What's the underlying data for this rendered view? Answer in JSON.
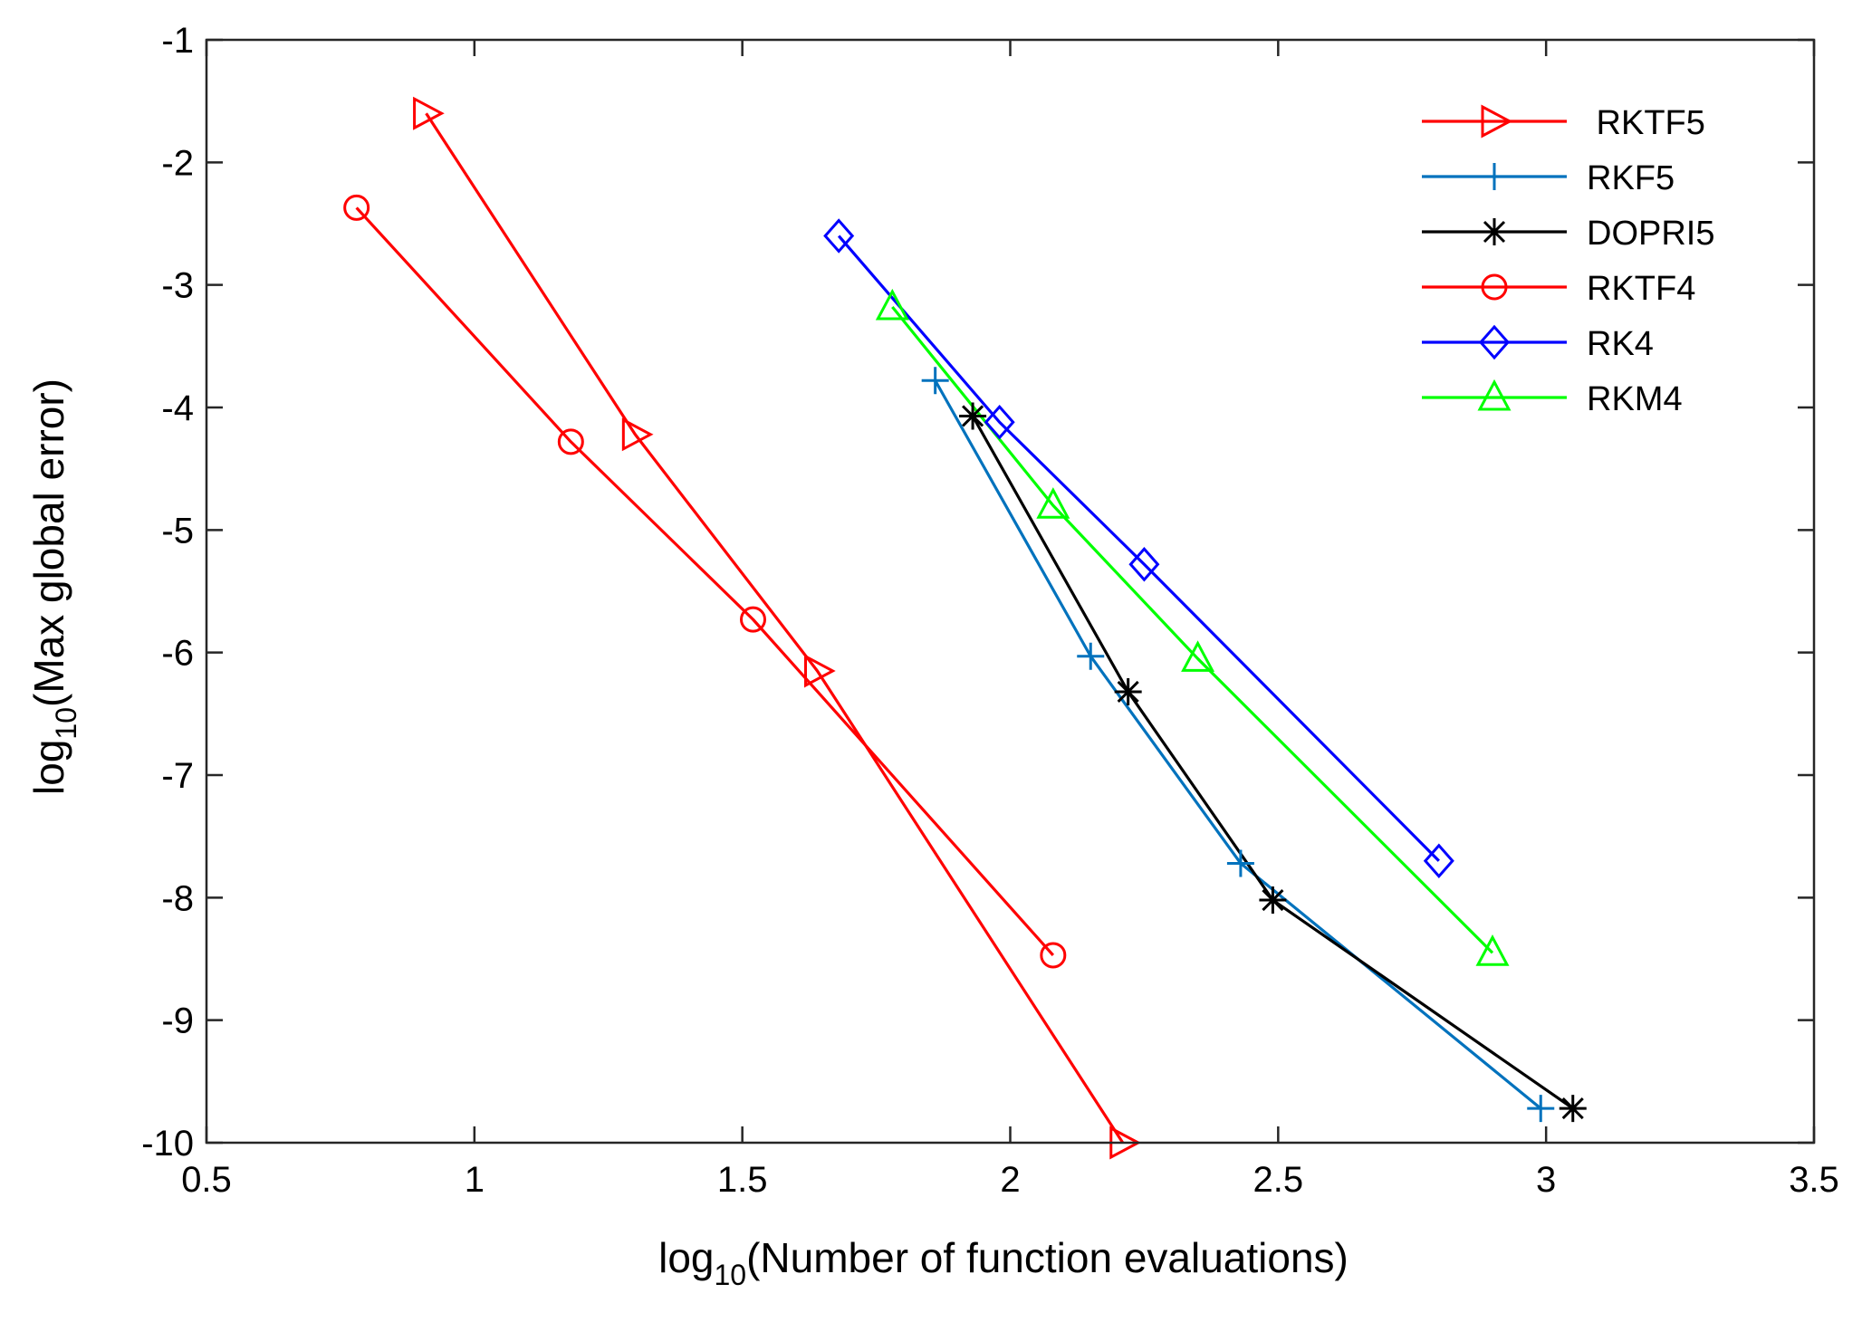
{
  "chart_data": {
    "type": "line",
    "title": "",
    "xlabel": {
      "prefix": "log",
      "sub": "10",
      "rest": "(Number of function evaluations)"
    },
    "ylabel": {
      "prefix": "log",
      "sub": "10",
      "rest": "(Max global error)"
    },
    "xlim": [
      0.5,
      3.5
    ],
    "ylim": [
      -10,
      -1
    ],
    "xticks": [
      0.5,
      1,
      1.5,
      2,
      2.5,
      3,
      3.5
    ],
    "xtick_labels": [
      "0.5",
      "1",
      "1.5",
      "2",
      "2.5",
      "3",
      "3.5"
    ],
    "yticks": [
      -1,
      -2,
      -3,
      -4,
      -5,
      -6,
      -7,
      -8,
      -9,
      -10
    ],
    "ytick_labels": [
      "-1",
      "-2",
      "-3",
      "-4",
      "-5",
      "-6",
      "-7",
      "-8",
      "-9",
      "-10"
    ],
    "grid": false,
    "legend_position": "top-right",
    "series": [
      {
        "name": " RKTF5",
        "color": "#ff0000",
        "marker": "triangle-right",
        "x": [
          0.91,
          1.3,
          1.64,
          2.21
        ],
        "y": [
          -1.6,
          -4.22,
          -6.15,
          -10.0
        ]
      },
      {
        "name": "RKF5",
        "color": "#0072bd",
        "marker": "plus",
        "x": [
          1.86,
          2.15,
          2.43,
          2.99
        ],
        "y": [
          -3.78,
          -6.03,
          -7.72,
          -9.72
        ]
      },
      {
        "name": "DOPRI5",
        "color": "#000000",
        "marker": "asterisk",
        "x": [
          1.93,
          2.22,
          2.49,
          3.05
        ],
        "y": [
          -4.07,
          -6.32,
          -8.02,
          -9.72
        ]
      },
      {
        "name": "RKTF4",
        "color": "#ff0000",
        "marker": "circle",
        "x": [
          0.78,
          1.18,
          1.52,
          2.08
        ],
        "y": [
          -2.37,
          -4.28,
          -5.73,
          -8.47
        ]
      },
      {
        "name": "RK4",
        "color": "#0000ff",
        "marker": "diamond",
        "x": [
          1.68,
          1.98,
          2.25,
          2.8
        ],
        "y": [
          -2.6,
          -4.12,
          -5.28,
          -7.7
        ]
      },
      {
        "name": "RKM4",
        "color": "#00ff00",
        "marker": "triangle-up",
        "x": [
          1.78,
          2.08,
          2.35,
          2.9
        ],
        "y": [
          -3.18,
          -4.8,
          -6.05,
          -8.45
        ]
      }
    ]
  }
}
